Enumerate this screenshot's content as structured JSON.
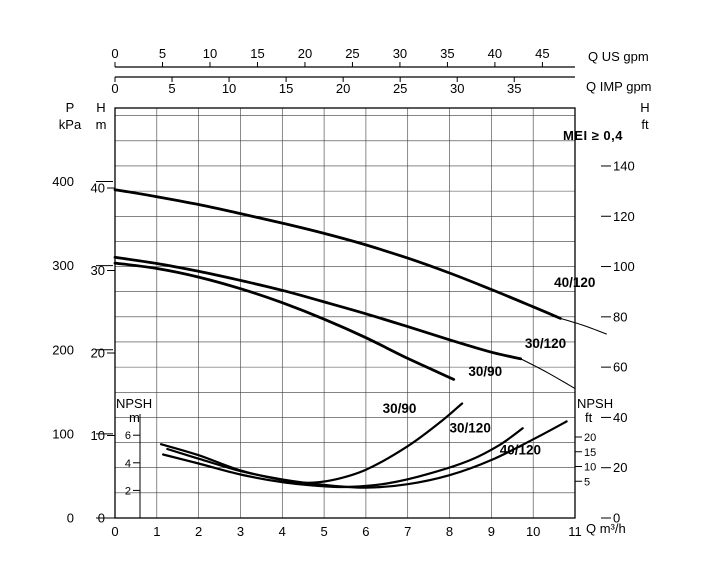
{
  "chart_data": {
    "type": "line",
    "title": "MEI ≥ 0,4",
    "colors": {
      "ink": "#000000",
      "grid": "#3c3c3c",
      "bg": "#ffffff"
    },
    "axes": {
      "flow_m3h": {
        "label": "Q m³/h",
        "range": [
          0,
          11
        ],
        "ticks": [
          0,
          1,
          2,
          3,
          4,
          5,
          6,
          7,
          8,
          9,
          10,
          11
        ]
      },
      "flow_us_gpm": {
        "label": "Q US gpm",
        "ticks": [
          0,
          5,
          10,
          15,
          20,
          25,
          30,
          35,
          40,
          45
        ],
        "us_gpm_per_m3h": 4.403
      },
      "flow_imp_gpm": {
        "label": "Q IMP gpm",
        "ticks": [
          0,
          5,
          10,
          15,
          20,
          25,
          30,
          35
        ],
        "imp_gpm_per_m3h": 3.666
      },
      "head_m": {
        "symbol": "H",
        "unit": "m",
        "range": [
          0,
          49.7
        ],
        "ticks": [
          0,
          10,
          20,
          30,
          40
        ]
      },
      "pressure_kpa": {
        "symbol": "P",
        "unit": "kPa",
        "ticks": [
          0,
          100,
          200,
          300,
          400
        ],
        "kpa_per_m_head": 9.807
      },
      "head_ft": {
        "symbol": "H",
        "unit": "ft",
        "ticks": [
          0,
          20,
          40,
          60,
          80,
          100,
          120,
          140
        ],
        "ft_per_m": 3.2808,
        "grid_step_ft": 10
      },
      "npsh_m": {
        "symbol": "NPSH",
        "unit": "m",
        "ticks": [
          2,
          4,
          6
        ]
      },
      "npsh_ft": {
        "symbol": "NPSH",
        "unit": "ft",
        "ticks": [
          5,
          10,
          15,
          20
        ]
      }
    },
    "head_curves": [
      {
        "name": "40/120",
        "points_q_h_m": [
          [
            0,
            39.8
          ],
          [
            1,
            38.95
          ],
          [
            2,
            38.0
          ],
          [
            3,
            36.9
          ],
          [
            4,
            35.75
          ],
          [
            5,
            34.5
          ],
          [
            6,
            33.1
          ],
          [
            7,
            31.5
          ],
          [
            8,
            29.7
          ],
          [
            9,
            27.7
          ],
          [
            10,
            25.6
          ],
          [
            10.65,
            24.2
          ]
        ],
        "thin_extension": [
          [
            10.65,
            24.2
          ],
          [
            11.2,
            23.35
          ],
          [
            11.75,
            22.3
          ]
        ],
        "label_at": [
          10.5,
          28.0
        ]
      },
      {
        "name": "30/120",
        "points_q_h_m": [
          [
            0,
            31.6
          ],
          [
            1,
            30.85
          ],
          [
            2,
            29.9
          ],
          [
            3,
            28.8
          ],
          [
            4,
            27.6
          ],
          [
            5,
            26.2
          ],
          [
            6,
            24.75
          ],
          [
            7,
            23.2
          ],
          [
            8,
            21.6
          ],
          [
            9,
            20.1
          ],
          [
            9.7,
            19.3
          ]
        ],
        "thin_extension": [
          [
            9.7,
            19.3
          ],
          [
            10.35,
            17.6
          ],
          [
            11,
            15.7
          ]
        ],
        "label_at": [
          9.8,
          20.6
        ]
      },
      {
        "name": "30/90",
        "points_q_h_m": [
          [
            0,
            30.9
          ],
          [
            1,
            30.25
          ],
          [
            2,
            29.2
          ],
          [
            3,
            27.8
          ],
          [
            4,
            26.1
          ],
          [
            5,
            24.1
          ],
          [
            6,
            21.85
          ],
          [
            7,
            19.35
          ],
          [
            8.1,
            16.8
          ]
        ],
        "thin_extension": [],
        "label_at": [
          8.45,
          17.2
        ]
      }
    ],
    "npsh_curves": [
      {
        "name": "30/90",
        "points_q_npsh_m": [
          [
            1.1,
            5.35
          ],
          [
            2,
            4.55
          ],
          [
            3,
            3.45
          ],
          [
            4,
            2.75
          ],
          [
            4.6,
            2.55
          ],
          [
            5.2,
            2.75
          ],
          [
            6,
            3.5
          ],
          [
            7,
            5.2
          ],
          [
            7.8,
            7.0
          ],
          [
            8.3,
            8.3
          ]
        ],
        "label_at": [
          6.4,
          7.6
        ]
      },
      {
        "name": "30/120",
        "points_q_npsh_m": [
          [
            1.15,
            4.6
          ],
          [
            2,
            3.95
          ],
          [
            3,
            3.15
          ],
          [
            4,
            2.6
          ],
          [
            5,
            2.3
          ],
          [
            5.6,
            2.25
          ],
          [
            6.5,
            2.5
          ],
          [
            7.5,
            3.2
          ],
          [
            8.5,
            4.2
          ],
          [
            9.2,
            5.3
          ],
          [
            9.75,
            6.5
          ]
        ],
        "label_at": [
          8.0,
          6.2
        ]
      },
      {
        "name": "40/120",
        "points_q_npsh_m": [
          [
            1.25,
            5.0
          ],
          [
            2,
            4.3
          ],
          [
            3,
            3.4
          ],
          [
            4,
            2.8
          ],
          [
            5,
            2.4
          ],
          [
            6,
            2.2
          ],
          [
            7,
            2.45
          ],
          [
            8,
            3.1
          ],
          [
            9,
            4.2
          ],
          [
            10,
            5.7
          ],
          [
            10.8,
            7.0
          ]
        ],
        "label_at": [
          9.2,
          4.6
        ]
      }
    ]
  }
}
